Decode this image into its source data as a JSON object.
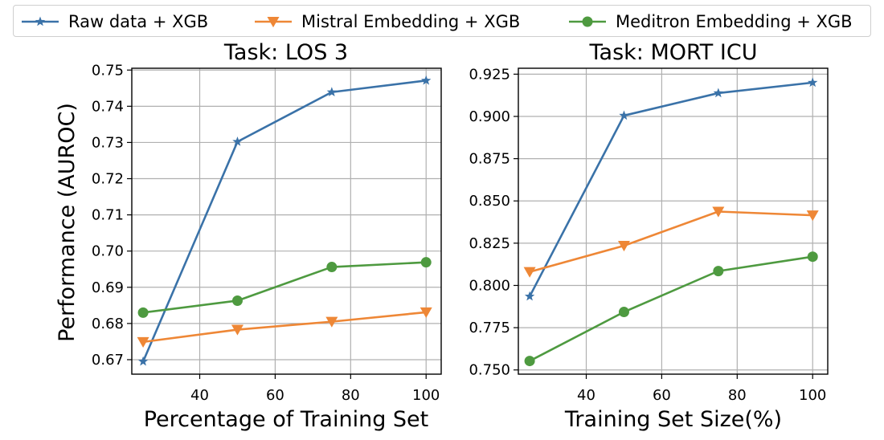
{
  "legend": [
    {
      "label": "Raw data + XGB",
      "color": "#3a72a8",
      "marker": "star"
    },
    {
      "label": "Mistral Embedding + XGB",
      "color": "#ee8736",
      "marker": "triangle-down"
    },
    {
      "label": "Meditron Embedding + XGB",
      "color": "#4e9a40",
      "marker": "circle"
    }
  ],
  "ylabel_shared": "Performance (AUROC)",
  "chart_data": [
    {
      "type": "line",
      "title": "Task: LOS 3",
      "xlabel": "Percentage of Training Set",
      "ylabel": "Performance (AUROC)",
      "x": [
        25,
        50,
        75,
        100
      ],
      "xlim": [
        22,
        104
      ],
      "ylim": [
        0.666,
        0.7505
      ],
      "xticks": [
        40,
        60,
        80,
        100
      ],
      "yticks": [
        0.67,
        0.68,
        0.69,
        0.7,
        0.71,
        0.72,
        0.73,
        0.74,
        0.75
      ],
      "ytick_labels": [
        "0.67",
        "0.68",
        "0.69",
        "0.70",
        "0.71",
        "0.72",
        "0.73",
        "0.74",
        "0.75"
      ],
      "grid": true,
      "series": [
        {
          "name": "Raw data + XGB",
          "values": [
            0.6695,
            0.7302,
            0.7439,
            0.7471
          ]
        },
        {
          "name": "Mistral Embedding + XGB",
          "values": [
            0.6749,
            0.6783,
            0.6805,
            0.6831
          ]
        },
        {
          "name": "Meditron Embedding + XGB",
          "values": [
            0.683,
            0.6863,
            0.6956,
            0.6969
          ]
        }
      ]
    },
    {
      "type": "line",
      "title": "Task: MORT ICU",
      "xlabel": "Training Set Size(%)",
      "ylabel": "",
      "x": [
        25,
        50,
        75,
        100
      ],
      "xlim": [
        22,
        104
      ],
      "ylim": [
        0.7475,
        0.9285
      ],
      "xticks": [
        40,
        60,
        80,
        100
      ],
      "yticks": [
        0.75,
        0.775,
        0.8,
        0.825,
        0.85,
        0.875,
        0.9,
        0.925
      ],
      "ytick_labels": [
        "0.750",
        "0.775",
        "0.800",
        "0.825",
        "0.850",
        "0.875",
        "0.900",
        "0.925"
      ],
      "grid": true,
      "series": [
        {
          "name": "Raw data + XGB",
          "values": [
            0.7935,
            0.9005,
            0.9138,
            0.92
          ]
        },
        {
          "name": "Mistral Embedding + XGB",
          "values": [
            0.808,
            0.8235,
            0.8437,
            0.8415
          ]
        },
        {
          "name": "Meditron Embedding + XGB",
          "values": [
            0.7553,
            0.7843,
            0.8085,
            0.817
          ]
        }
      ]
    }
  ]
}
